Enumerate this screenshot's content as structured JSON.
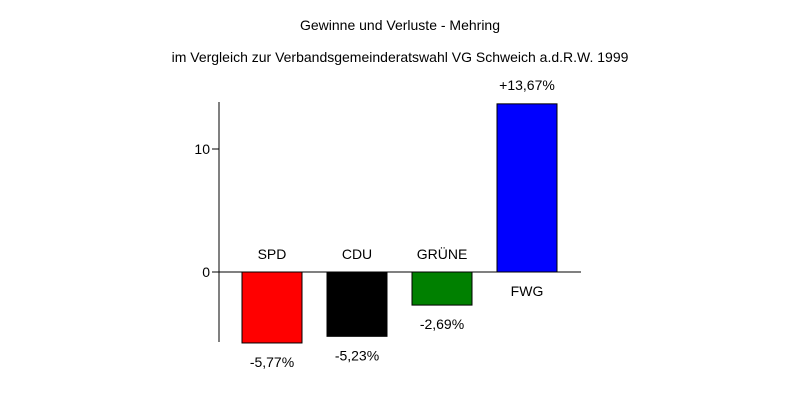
{
  "chart_data": {
    "type": "bar",
    "title": "Gewinne und Verluste - Mehring",
    "subtitle": "im Vergleich zur Verbandsgemeinderatswahl VG Schweich a.d.R.W. 1999",
    "categories": [
      "SPD",
      "CDU",
      "GRÜNE",
      "FWG"
    ],
    "values": [
      -5.77,
      -5.23,
      -2.69,
      13.67
    ],
    "value_labels": [
      "-5,77%",
      "-5,23%",
      "-2,69%",
      "+13,67%"
    ],
    "colors": [
      "#ff0000",
      "#000000",
      "#008000",
      "#0000ff"
    ],
    "yticks": [
      0,
      10
    ],
    "ytick_labels": [
      "0",
      "10"
    ],
    "ylim": [
      -5.77,
      13.67
    ],
    "grid": false,
    "legend": "none",
    "xlabel": "",
    "ylabel": ""
  }
}
